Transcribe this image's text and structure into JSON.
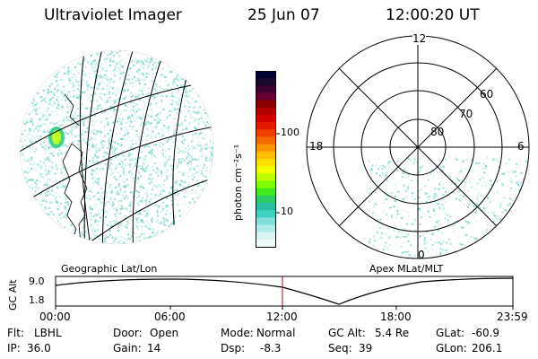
{
  "header": {
    "title": "Ultraviolet Imager",
    "date": "25 Jun 07",
    "time": "12:00:20 UT"
  },
  "colorbar": {
    "label": "photon cm⁻²s⁻¹",
    "ticks": [
      "100",
      "10"
    ],
    "colors": [
      "#000033",
      "#1a0a2e",
      "#3d0033",
      "#660033",
      "#8c0000",
      "#b30000",
      "#d40000",
      "#e61a00",
      "#f04000",
      "#f56a00",
      "#fa9600",
      "#ffbf00",
      "#ffe000",
      "#f0ff00",
      "#c0ff00",
      "#80ff00",
      "#40e81e",
      "#2dcc66",
      "#28c0a0",
      "#40d0c0",
      "#80e0d8",
      "#b0ece8",
      "#d8f4f2",
      "#eefaf9"
    ]
  },
  "geo_panel": {
    "label": "Geographic Lat/Lon"
  },
  "polar_panel": {
    "label": "Apex MLat/MLT",
    "hour_labels": [
      "12",
      "18",
      "6",
      "0"
    ],
    "lat_labels": [
      "60",
      "70",
      "80"
    ]
  },
  "altitude_strip": {
    "axis_label": "GC Alt",
    "y_ticks": [
      "9.0",
      "1.8"
    ],
    "x_ticks": [
      "00:00",
      "06:00",
      "12:00",
      "18:00",
      "23:59"
    ]
  },
  "status": {
    "filter_label": "Flt:",
    "filter_value": "LBHL",
    "door_label": "Door:",
    "door_value": "Open",
    "mode_label": "Mode:",
    "mode_value": "Normal",
    "gcalt_label": "GC Alt:",
    "gcalt_value": "5.4 Re",
    "glat_label": "GLat:",
    "glat_value": "-60.9",
    "ip_label": "IP:",
    "ip_value": "36.0",
    "gain_label": "Gain:",
    "gain_value": "14",
    "dsp_label": "Dsp:",
    "dsp_value": "-8.3",
    "seq_label": "Seq:",
    "seq_value": "39",
    "glon_label": "GLon:",
    "glon_value": "206.1"
  }
}
